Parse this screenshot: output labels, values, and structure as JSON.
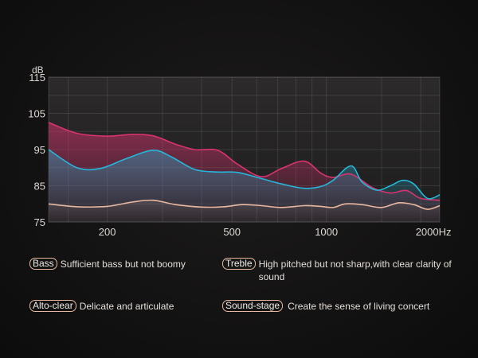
{
  "chart_data": {
    "type": "line",
    "ylabel": "dB",
    "xlabel_unit": "Hz",
    "ylim": [
      75,
      115
    ],
    "yticks": [
      75,
      85,
      95,
      105,
      115
    ],
    "xlim": [
      130,
      2300
    ],
    "xscale": "log",
    "xticks": [
      {
        "value": 200,
        "label": "200"
      },
      {
        "value": 500,
        "label": "500"
      },
      {
        "value": 1000,
        "label": "1000"
      },
      {
        "value": 2000,
        "label": "2000Hz"
      }
    ],
    "series": [
      {
        "name": "pink",
        "color": "#d8336f",
        "x": [
          130,
          160,
          200,
          240,
          280,
          330,
          380,
          450,
          520,
          620,
          720,
          850,
          960,
          1050,
          1200,
          1400,
          1600,
          1800,
          2000,
          2300
        ],
        "values": [
          102.5,
          99.5,
          98.7,
          99.2,
          98.8,
          96.5,
          95.0,
          94.8,
          91.0,
          87.5,
          89.8,
          91.8,
          88.5,
          87.3,
          88.2,
          84.5,
          83.0,
          83.7,
          81.5,
          81.0
        ]
      },
      {
        "name": "blue",
        "color": "#25b7da",
        "x": [
          130,
          160,
          190,
          230,
          280,
          320,
          380,
          450,
          520,
          620,
          720,
          850,
          960,
          1050,
          1200,
          1300,
          1450,
          1600,
          1750,
          1900,
          2100,
          2300
        ],
        "values": [
          95.0,
          90.0,
          89.8,
          92.5,
          94.8,
          93.0,
          89.5,
          88.8,
          88.7,
          87.0,
          85.5,
          84.3,
          84.8,
          86.5,
          90.5,
          86.0,
          83.8,
          85.0,
          86.5,
          85.5,
          81.5,
          82.5
        ]
      },
      {
        "name": "peach",
        "color": "#e7b79f",
        "x": [
          130,
          160,
          200,
          240,
          280,
          330,
          400,
          470,
          540,
          620,
          720,
          850,
          960,
          1050,
          1150,
          1300,
          1500,
          1700,
          1900,
          2100,
          2300
        ],
        "values": [
          80.0,
          79.2,
          79.3,
          80.5,
          81.0,
          79.8,
          79.1,
          79.2,
          79.8,
          79.5,
          79.0,
          79.5,
          79.3,
          79.0,
          80.0,
          79.8,
          79.0,
          80.3,
          79.8,
          78.5,
          79.5
        ]
      }
    ]
  },
  "descriptions": {
    "bass": {
      "tag": "Bass",
      "text": "Sufficient bass but not boomy"
    },
    "treble": {
      "tag": "Treble",
      "text": "High pitched but not sharp,with clear clarity of sound"
    },
    "alto_clear": {
      "tag": "Alto-clear",
      "text": "Delicate and articulate"
    },
    "sound_stage": {
      "tag": "Sound-stage",
      "text": "Create the sense of living concert"
    }
  }
}
